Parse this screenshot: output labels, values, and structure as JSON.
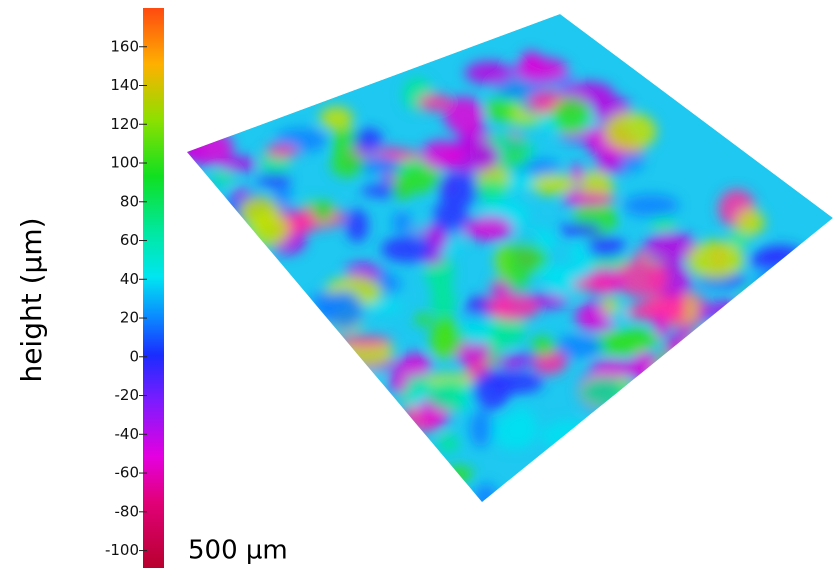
{
  "colorbar": {
    "label": "height (µm)",
    "lim": [
      -109,
      180
    ],
    "ticks": [
      -100,
      -80,
      -60,
      -40,
      -20,
      0,
      20,
      40,
      60,
      80,
      100,
      120,
      140,
      160
    ]
  },
  "scale_bar": "500 µm"
}
